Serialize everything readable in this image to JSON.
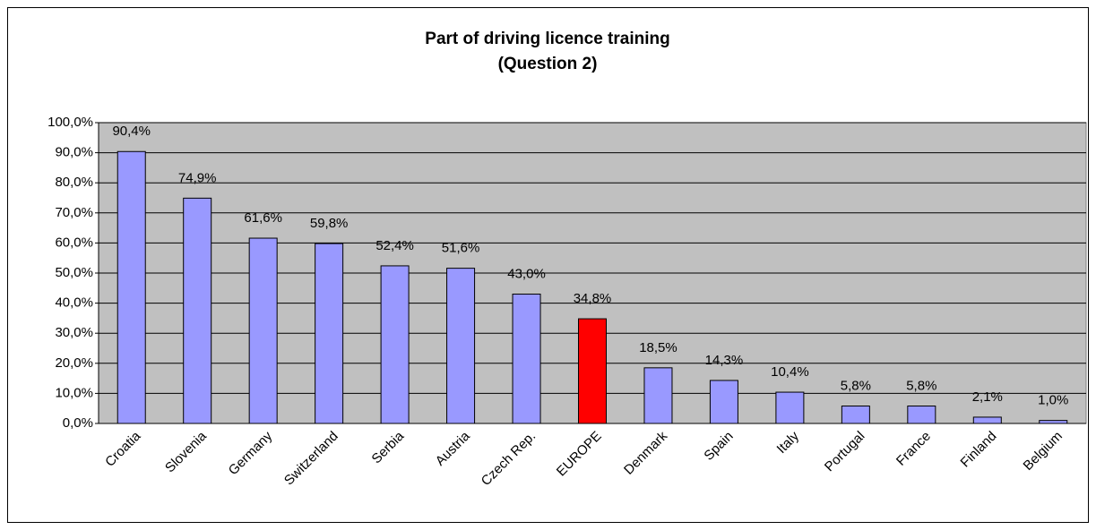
{
  "chart_data": {
    "type": "bar",
    "title": "Part of driving licence training",
    "subtitle": "(Question 2)",
    "categories": [
      "Croatia",
      "Slovenia",
      "Germany",
      "Switzerland",
      "Serbia",
      "Austria",
      "Czech Rep.",
      "EUROPE",
      "Denmark",
      "Spain",
      "Italy",
      "Portugal",
      "France",
      "Finland",
      "Belgium"
    ],
    "values": [
      90.4,
      74.9,
      61.6,
      59.8,
      52.4,
      51.6,
      43.0,
      34.8,
      18.5,
      14.3,
      10.4,
      5.8,
      5.8,
      2.1,
      1.0
    ],
    "value_labels": [
      "90,4%",
      "74,9%",
      "61,6%",
      "59,8%",
      "52,4%",
      "51,6%",
      "43,0%",
      "34,8%",
      "18,5%",
      "14,3%",
      "10,4%",
      "5,8%",
      "5,8%",
      "2,1%",
      "1,0%"
    ],
    "colors": [
      "#9999ff",
      "#9999ff",
      "#9999ff",
      "#9999ff",
      "#9999ff",
      "#9999ff",
      "#9999ff",
      "#ff0000",
      "#9999ff",
      "#9999ff",
      "#9999ff",
      "#9999ff",
      "#9999ff",
      "#9999ff",
      "#9999ff"
    ],
    "ylim": [
      0,
      100
    ],
    "yticks": [
      {
        "value": 0,
        "label": "0,0%"
      },
      {
        "value": 10,
        "label": "10,0%"
      },
      {
        "value": 20,
        "label": "20,0%"
      },
      {
        "value": 30,
        "label": "30,0%"
      },
      {
        "value": 40,
        "label": "40,0%"
      },
      {
        "value": 50,
        "label": "50,0%"
      },
      {
        "value": 60,
        "label": "60,0%"
      },
      {
        "value": 70,
        "label": "70,0%"
      },
      {
        "value": 80,
        "label": "80,0%"
      },
      {
        "value": 90,
        "label": "90,0%"
      },
      {
        "value": 100,
        "label": "100,0%"
      }
    ],
    "grid": true
  }
}
